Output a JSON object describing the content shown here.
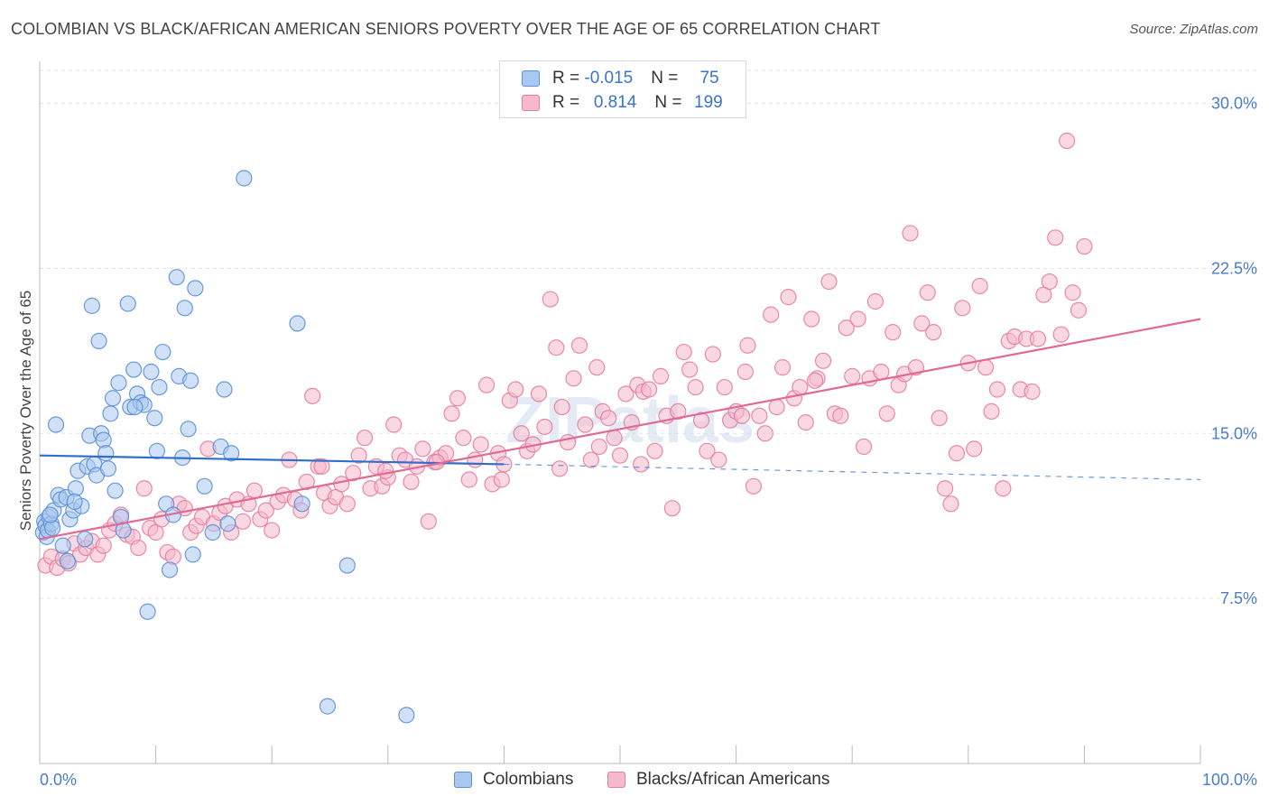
{
  "title": "COLOMBIAN VS BLACK/AFRICAN AMERICAN SENIORS POVERTY OVER THE AGE OF 65 CORRELATION CHART",
  "source": "Source: ZipAtlas.com",
  "watermark": "ZIPatlas",
  "legend": {
    "rows": [
      {
        "r_label": "R = ",
        "r_value": "-0.015",
        "n_label": "N = ",
        "n_value": "75",
        "fill": "#a9c8f0",
        "stroke": "#5b8fd6"
      },
      {
        "r_label": "R = ",
        "r_value": "0.814",
        "n_label": "N = ",
        "n_value": "199",
        "fill": "#f6b8cb",
        "stroke": "#e47da0"
      }
    ]
  },
  "bottom_legend": [
    {
      "label": "Colombians",
      "fill": "#a9c8f0",
      "stroke": "#5b8fd6"
    },
    {
      "label": "Blacks/African Americans",
      "fill": "#f6b8cb",
      "stroke": "#e47da0"
    }
  ],
  "chart_data": {
    "type": "scatter",
    "title": "COLOMBIAN VS BLACK/AFRICAN AMERICAN SENIORS POVERTY OVER THE AGE OF 65 CORRELATION CHART",
    "xlabel": "",
    "ylabel": "Seniors Poverty Over the Age of 65",
    "xlim": [
      0,
      100
    ],
    "ylim": [
      0,
      31.5
    ],
    "x_tick_labels": [
      "0.0%",
      "100.0%"
    ],
    "y_ticks": [
      7.5,
      15.0,
      22.5,
      30.0
    ],
    "y_tick_labels": [
      "7.5%",
      "15.0%",
      "22.5%",
      "30.0%"
    ],
    "grid": true,
    "legend_position": "top-center",
    "series": [
      {
        "name": "Colombians",
        "color": "#5b8fd6",
        "fill": "#a9c8f0",
        "trend": {
          "x": [
            0,
            40
          ],
          "y": [
            14.0,
            13.6
          ],
          "dashed_to": 100,
          "dashed_y_end": 12.9
        },
        "points": [
          [
            0.3,
            10.5
          ],
          [
            0.4,
            11.0
          ],
          [
            0.5,
            10.8
          ],
          [
            0.6,
            10.3
          ],
          [
            0.7,
            10.6
          ],
          [
            0.8,
            11.2
          ],
          [
            1.0,
            10.9
          ],
          [
            1.2,
            11.5
          ],
          [
            1.4,
            15.4
          ],
          [
            1.6,
            12.2
          ],
          [
            1.8,
            12.0
          ],
          [
            2.0,
            9.9
          ],
          [
            2.3,
            12.1
          ],
          [
            2.6,
            11.1
          ],
          [
            2.9,
            11.5
          ],
          [
            3.1,
            12.5
          ],
          [
            3.3,
            13.3
          ],
          [
            3.6,
            11.7
          ],
          [
            3.9,
            10.2
          ],
          [
            4.1,
            13.5
          ],
          [
            4.3,
            14.9
          ],
          [
            4.5,
            20.8
          ],
          [
            4.7,
            13.6
          ],
          [
            4.9,
            13.1
          ],
          [
            5.1,
            19.2
          ],
          [
            5.3,
            15.0
          ],
          [
            5.5,
            14.7
          ],
          [
            5.7,
            14.1
          ],
          [
            5.9,
            13.4
          ],
          [
            6.1,
            15.9
          ],
          [
            6.3,
            16.6
          ],
          [
            6.5,
            12.4
          ],
          [
            6.8,
            17.3
          ],
          [
            7.0,
            11.2
          ],
          [
            7.2,
            10.6
          ],
          [
            7.6,
            20.9
          ],
          [
            7.8,
            16.2
          ],
          [
            8.1,
            17.9
          ],
          [
            8.4,
            16.8
          ],
          [
            8.7,
            16.4
          ],
          [
            9.0,
            16.3
          ],
          [
            9.3,
            6.9
          ],
          [
            9.6,
            17.8
          ],
          [
            9.9,
            15.7
          ],
          [
            10.1,
            14.2
          ],
          [
            10.3,
            17.1
          ],
          [
            10.6,
            18.7
          ],
          [
            10.9,
            11.8
          ],
          [
            11.2,
            8.8
          ],
          [
            11.5,
            11.3
          ],
          [
            11.8,
            22.1
          ],
          [
            12.0,
            17.6
          ],
          [
            12.3,
            13.9
          ],
          [
            12.5,
            20.7
          ],
          [
            12.8,
            15.2
          ],
          [
            13.0,
            17.4
          ],
          [
            13.2,
            9.5
          ],
          [
            13.4,
            21.6
          ],
          [
            14.2,
            12.6
          ],
          [
            14.9,
            10.5
          ],
          [
            15.6,
            14.4
          ],
          [
            15.9,
            17.0
          ],
          [
            16.2,
            10.9
          ],
          [
            16.5,
            14.1
          ],
          [
            17.6,
            26.6
          ],
          [
            22.2,
            20.0
          ],
          [
            22.6,
            11.8
          ],
          [
            24.8,
            2.6
          ],
          [
            26.5,
            9.0
          ],
          [
            31.6,
            2.2
          ],
          [
            8.2,
            16.2
          ],
          [
            3.0,
            11.9
          ],
          [
            1.1,
            10.7
          ],
          [
            0.9,
            11.3
          ],
          [
            2.4,
            9.2
          ]
        ]
      },
      {
        "name": "Blacks/African Americans",
        "color": "#e47da0",
        "fill": "#f6b8cb",
        "trend": {
          "x": [
            0,
            100
          ],
          "y": [
            10.2,
            20.2
          ]
        },
        "points": [
          [
            0.5,
            9.0
          ],
          [
            1.0,
            9.4
          ],
          [
            1.5,
            8.9
          ],
          [
            2.0,
            9.3
          ],
          [
            2.5,
            9.1
          ],
          [
            3.0,
            10.0
          ],
          [
            3.5,
            9.5
          ],
          [
            4.0,
            9.8
          ],
          [
            4.5,
            10.1
          ],
          [
            5.0,
            9.5
          ],
          [
            5.5,
            9.9
          ],
          [
            6.0,
            10.6
          ],
          [
            6.5,
            10.9
          ],
          [
            7.0,
            11.3
          ],
          [
            7.5,
            10.4
          ],
          [
            8.0,
            10.3
          ],
          [
            8.5,
            9.8
          ],
          [
            9.0,
            12.5
          ],
          [
            9.5,
            10.7
          ],
          [
            10.0,
            10.5
          ],
          [
            10.5,
            11.1
          ],
          [
            11.0,
            9.6
          ],
          [
            11.5,
            9.4
          ],
          [
            12.0,
            11.8
          ],
          [
            12.5,
            11.6
          ],
          [
            13.0,
            10.5
          ],
          [
            13.5,
            10.8
          ],
          [
            14.0,
            11.2
          ],
          [
            14.5,
            14.3
          ],
          [
            15.0,
            10.9
          ],
          [
            15.5,
            11.4
          ],
          [
            16.0,
            11.7
          ],
          [
            16.5,
            10.5
          ],
          [
            17.0,
            12.0
          ],
          [
            17.5,
            11.0
          ],
          [
            18.0,
            11.8
          ],
          [
            18.5,
            12.4
          ],
          [
            19.0,
            11.1
          ],
          [
            19.5,
            11.5
          ],
          [
            20.0,
            10.6
          ],
          [
            20.5,
            11.9
          ],
          [
            21.0,
            12.2
          ],
          [
            21.5,
            13.8
          ],
          [
            22.0,
            12.0
          ],
          [
            22.5,
            11.5
          ],
          [
            23.0,
            12.8
          ],
          [
            23.5,
            16.7
          ],
          [
            24.0,
            13.5
          ],
          [
            24.5,
            12.3
          ],
          [
            25.0,
            11.7
          ],
          [
            25.5,
            12.1
          ],
          [
            26.0,
            12.7
          ],
          [
            26.5,
            11.8
          ],
          [
            27.0,
            13.2
          ],
          [
            27.5,
            14.0
          ],
          [
            28.0,
            14.8
          ],
          [
            28.5,
            12.5
          ],
          [
            29.0,
            13.5
          ],
          [
            29.5,
            12.6
          ],
          [
            30.0,
            13.0
          ],
          [
            30.5,
            15.4
          ],
          [
            31.0,
            14.0
          ],
          [
            31.5,
            13.8
          ],
          [
            32.0,
            12.8
          ],
          [
            32.5,
            13.5
          ],
          [
            33.0,
            14.3
          ],
          [
            33.5,
            11.0
          ],
          [
            34.0,
            13.7
          ],
          [
            34.5,
            13.9
          ],
          [
            35.0,
            14.1
          ],
          [
            35.5,
            15.9
          ],
          [
            36.0,
            16.6
          ],
          [
            36.5,
            14.8
          ],
          [
            37.0,
            12.9
          ],
          [
            37.5,
            13.8
          ],
          [
            38.0,
            14.5
          ],
          [
            38.5,
            17.2
          ],
          [
            39.0,
            12.7
          ],
          [
            39.5,
            14.1
          ],
          [
            40.0,
            13.6
          ],
          [
            40.5,
            16.5
          ],
          [
            41.0,
            17.0
          ],
          [
            41.5,
            15.0
          ],
          [
            42.0,
            14.2
          ],
          [
            42.5,
            14.5
          ],
          [
            43.0,
            16.8
          ],
          [
            43.5,
            15.3
          ],
          [
            44.0,
            21.1
          ],
          [
            44.5,
            18.9
          ],
          [
            45.0,
            16.2
          ],
          [
            45.5,
            14.6
          ],
          [
            46.0,
            17.5
          ],
          [
            46.5,
            19.0
          ],
          [
            47.0,
            15.4
          ],
          [
            47.5,
            13.8
          ],
          [
            48.0,
            18.0
          ],
          [
            48.5,
            16.0
          ],
          [
            49.0,
            15.7
          ],
          [
            49.5,
            14.8
          ],
          [
            50.0,
            14.0
          ],
          [
            50.5,
            16.8
          ],
          [
            51.0,
            15.5
          ],
          [
            51.5,
            17.2
          ],
          [
            52.0,
            16.9
          ],
          [
            52.5,
            17.0
          ],
          [
            53.0,
            14.2
          ],
          [
            53.5,
            17.6
          ],
          [
            54.0,
            15.8
          ],
          [
            54.5,
            11.6
          ],
          [
            55.0,
            16.0
          ],
          [
            55.5,
            18.7
          ],
          [
            56.0,
            17.9
          ],
          [
            56.5,
            17.1
          ],
          [
            57.0,
            15.6
          ],
          [
            57.5,
            14.2
          ],
          [
            58.0,
            18.6
          ],
          [
            58.5,
            13.8
          ],
          [
            59.0,
            17.1
          ],
          [
            59.5,
            15.6
          ],
          [
            60.0,
            16.0
          ],
          [
            60.5,
            15.8
          ],
          [
            61.0,
            19.0
          ],
          [
            61.5,
            12.6
          ],
          [
            62.0,
            15.8
          ],
          [
            62.5,
            15.0
          ],
          [
            63.0,
            20.4
          ],
          [
            63.5,
            16.2
          ],
          [
            64.0,
            18.0
          ],
          [
            64.5,
            21.2
          ],
          [
            65.0,
            16.6
          ],
          [
            65.5,
            17.1
          ],
          [
            66.0,
            15.5
          ],
          [
            66.5,
            20.2
          ],
          [
            67.0,
            17.5
          ],
          [
            67.5,
            18.3
          ],
          [
            68.0,
            21.9
          ],
          [
            68.5,
            15.9
          ],
          [
            69.0,
            15.8
          ],
          [
            69.5,
            19.8
          ],
          [
            70.0,
            17.6
          ],
          [
            70.5,
            20.2
          ],
          [
            71.0,
            14.4
          ],
          [
            71.5,
            17.5
          ],
          [
            72.0,
            21.0
          ],
          [
            72.5,
            17.8
          ],
          [
            73.0,
            15.9
          ],
          [
            73.5,
            19.6
          ],
          [
            74.0,
            17.2
          ],
          [
            74.5,
            17.7
          ],
          [
            75.0,
            24.1
          ],
          [
            75.5,
            18.0
          ],
          [
            76.0,
            20.0
          ],
          [
            76.5,
            21.4
          ],
          [
            77.0,
            19.6
          ],
          [
            77.5,
            15.7
          ],
          [
            78.0,
            12.5
          ],
          [
            78.5,
            11.8
          ],
          [
            79.0,
            14.1
          ],
          [
            79.5,
            20.7
          ],
          [
            80.0,
            18.2
          ],
          [
            80.5,
            14.3
          ],
          [
            81.0,
            21.7
          ],
          [
            81.5,
            18.0
          ],
          [
            82.0,
            16.0
          ],
          [
            82.5,
            17.0
          ],
          [
            83.0,
            12.5
          ],
          [
            83.5,
            19.2
          ],
          [
            84.0,
            19.4
          ],
          [
            84.5,
            17.0
          ],
          [
            85.0,
            19.3
          ],
          [
            85.5,
            16.9
          ],
          [
            86.0,
            19.3
          ],
          [
            86.5,
            21.3
          ],
          [
            87.0,
            21.9
          ],
          [
            87.5,
            23.9
          ],
          [
            88.0,
            19.5
          ],
          [
            88.5,
            28.3
          ],
          [
            89.0,
            21.4
          ],
          [
            89.5,
            20.6
          ],
          [
            90.0,
            23.5
          ],
          [
            29.8,
            13.3
          ],
          [
            24.3,
            13.5
          ],
          [
            34.2,
            13.7
          ],
          [
            39.8,
            12.9
          ],
          [
            44.8,
            13.4
          ],
          [
            48.2,
            14.4
          ],
          [
            51.8,
            13.6
          ],
          [
            60.8,
            17.8
          ],
          [
            66.8,
            17.4
          ]
        ]
      }
    ]
  }
}
